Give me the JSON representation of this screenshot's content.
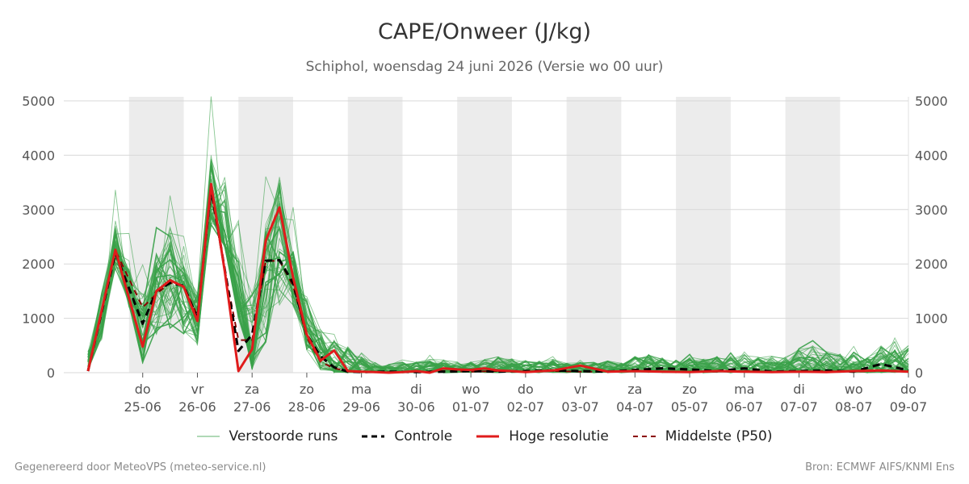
{
  "title": "CAPE/Onweer (J/kg)",
  "subtitle": "Schiphol, woensdag 24 juni 2026 (Versie wo 00 uur)",
  "footer_left": "Gegenereerd door MeteoVPS (meteo-service.nl)",
  "footer_right": "Bron: ECMWF AIFS/KNMI Ens",
  "colors": {
    "ens": "#3aa14a",
    "controle": "#000000",
    "hires": "#e01b1b",
    "p50": "#8b0000",
    "night": "#ececec",
    "grid": "#d8d8d8"
  },
  "legend": [
    {
      "key": "ens",
      "label": "Verstoorde runs"
    },
    {
      "key": "controle",
      "label": "Controle"
    },
    {
      "key": "hires",
      "label": "Hoge resolutie"
    },
    {
      "key": "p50",
      "label": "Middelste (P50)"
    }
  ],
  "chart_data": {
    "type": "line",
    "x_unit": "days since wo 24-06 00 uur",
    "xlim": [
      0,
      15
    ],
    "ylim": [
      0,
      5000
    ],
    "y_ticks": [
      0,
      1000,
      2000,
      3000,
      4000,
      5000
    ],
    "grid": true,
    "legend_position": "bottom",
    "x_ticks": [
      {
        "x": 1,
        "day": "do",
        "date": "25-06"
      },
      {
        "x": 2,
        "day": "vr",
        "date": "26-06"
      },
      {
        "x": 3,
        "day": "za",
        "date": "27-06"
      },
      {
        "x": 4,
        "day": "zo",
        "date": "28-06"
      },
      {
        "x": 5,
        "day": "ma",
        "date": "29-06"
      },
      {
        "x": 6,
        "day": "di",
        "date": "30-06"
      },
      {
        "x": 7,
        "day": "wo",
        "date": "01-07"
      },
      {
        "x": 8,
        "day": "do",
        "date": "02-07"
      },
      {
        "x": 9,
        "day": "vr",
        "date": "03-07"
      },
      {
        "x": 10,
        "day": "za",
        "date": "04-07"
      },
      {
        "x": 11,
        "day": "zo",
        "date": "05-07"
      },
      {
        "x": 12,
        "day": "ma",
        "date": "06-07"
      },
      {
        "x": 13,
        "day": "di",
        "date": "07-07"
      },
      {
        "x": 14,
        "day": "wo",
        "date": "08-07"
      },
      {
        "x": 15,
        "day": "do",
        "date": "09-07"
      }
    ],
    "night_bands": [
      [
        0.75,
        1.75
      ],
      [
        2.75,
        3.75
      ],
      [
        4.75,
        5.75
      ],
      [
        6.75,
        7.75
      ],
      [
        8.75,
        9.75
      ],
      [
        10.75,
        11.75
      ],
      [
        12.75,
        13.75
      ]
    ],
    "series": [
      {
        "name": "Hoge resolutie",
        "kind": "hires",
        "x": [
          0,
          0.5,
          1,
          1.25,
          1.5,
          1.75,
          2,
          2.25,
          2.5,
          2.75,
          3,
          3.25,
          3.5,
          3.75,
          4,
          4.25,
          4.5,
          4.75,
          5,
          5.25,
          5.5,
          5.75,
          6,
          6.25,
          6.5,
          6.75,
          7,
          7.25,
          7.5,
          7.75,
          8,
          8.5,
          9,
          9.5,
          10,
          10.5,
          11,
          11.5,
          12,
          12.5,
          13,
          13.5,
          14,
          14.5,
          15
        ],
        "y": [
          30,
          2260,
          480,
          1500,
          1700,
          1580,
          950,
          3470,
          1870,
          30,
          430,
          2430,
          3040,
          1750,
          700,
          220,
          410,
          30,
          20,
          10,
          0,
          10,
          30,
          0,
          80,
          60,
          50,
          80,
          40,
          30,
          10,
          40,
          130,
          20,
          30,
          20,
          10,
          30,
          20,
          10,
          20,
          10,
          30,
          40,
          20
        ]
      },
      {
        "name": "Controle",
        "kind": "controle",
        "x": [
          0,
          0.5,
          1,
          1.25,
          1.5,
          1.75,
          2,
          2.25,
          2.5,
          2.75,
          3,
          3.25,
          3.5,
          3.75,
          4,
          4.25,
          4.5,
          4.75,
          5,
          5.5,
          6,
          6.5,
          7,
          7.5,
          8,
          8.5,
          9,
          9.5,
          10,
          10.5,
          11,
          11.5,
          12,
          12.5,
          13,
          13.5,
          14,
          14.5,
          15
        ],
        "y": [
          30,
          2200,
          900,
          1500,
          1650,
          1600,
          1000,
          3400,
          1900,
          400,
          700,
          2060,
          2070,
          1650,
          700,
          300,
          100,
          20,
          10,
          20,
          10,
          20,
          30,
          20,
          30,
          40,
          30,
          20,
          50,
          80,
          60,
          30,
          80,
          20,
          30,
          40,
          20,
          160,
          40
        ]
      },
      {
        "name": "Middelste (P50)",
        "kind": "p50",
        "x": [
          0,
          0.5,
          1,
          1.25,
          1.5,
          1.75,
          2,
          2.25,
          2.5,
          2.75,
          3,
          3.25,
          3.5,
          3.75,
          4,
          4.25,
          4.5,
          4.75,
          5,
          5.5,
          6,
          6.5,
          7,
          7.5,
          8,
          8.5,
          9,
          9.5,
          10,
          10.5,
          11,
          11.5,
          12,
          12.5,
          13,
          13.5,
          14,
          14.5,
          15
        ],
        "y": [
          30,
          2250,
          1200,
          1450,
          1650,
          1600,
          1050,
          3300,
          1900,
          600,
          600,
          2050,
          2060,
          1600,
          650,
          200,
          80,
          30,
          20,
          10,
          20,
          30,
          20,
          30,
          20,
          30,
          20,
          20,
          30,
          20,
          20,
          20,
          30,
          20,
          20,
          30,
          20,
          30,
          20
        ]
      }
    ],
    "ensemble": {
      "name": "Verstoorde runs",
      "member_count": 50,
      "x": [
        0,
        0.25,
        0.5,
        0.75,
        1,
        1.25,
        1.5,
        1.75,
        2,
        2.25,
        2.5,
        2.75,
        3,
        3.25,
        3.5,
        3.75,
        4,
        4.25,
        4.5,
        4.75,
        5,
        5.25,
        5.5,
        5.75,
        6,
        6.25,
        6.5,
        6.75,
        7,
        7.25,
        7.5,
        7.75,
        8,
        8.25,
        8.5,
        8.75,
        9,
        9.25,
        9.5,
        9.75,
        10,
        10.25,
        10.5,
        10.75,
        11,
        11.25,
        11.5,
        11.75,
        12,
        12.25,
        12.5,
        12.75,
        13,
        13.25,
        13.5,
        13.75,
        14,
        14.25,
        14.5,
        14.75,
        15
      ],
      "p10": [
        50,
        600,
        1900,
        1200,
        150,
        700,
        800,
        700,
        500,
        2700,
        2300,
        1000,
        50,
        500,
        1200,
        1200,
        400,
        50,
        0,
        0,
        0,
        0,
        0,
        0,
        0,
        0,
        0,
        0,
        0,
        0,
        0,
        0,
        0,
        0,
        0,
        0,
        0,
        0,
        0,
        0,
        0,
        0,
        0,
        0,
        0,
        0,
        0,
        0,
        0,
        0,
        0,
        0,
        0,
        0,
        0,
        0,
        0,
        0,
        0,
        0,
        0
      ],
      "p50": [
        100,
        1000,
        2200,
        1500,
        800,
        1500,
        1650,
        1500,
        1050,
        3300,
        2400,
        1400,
        300,
        1800,
        2200,
        1800,
        800,
        300,
        100,
        50,
        20,
        10,
        20,
        30,
        20,
        40,
        60,
        40,
        50,
        40,
        60,
        40,
        50,
        40,
        50,
        30,
        40,
        30,
        50,
        40,
        60,
        70,
        50,
        40,
        60,
        50,
        60,
        40,
        60,
        50,
        60,
        40,
        70,
        80,
        60,
        50,
        70,
        60,
        80,
        70,
        60
      ],
      "p90": [
        400,
        1500,
        2700,
        1900,
        1500,
        2200,
        2700,
        2000,
        1500,
        4000,
        3500,
        2200,
        1500,
        2700,
        3600,
        2300,
        1400,
        800,
        600,
        500,
        300,
        200,
        150,
        200,
        200,
        250,
        250,
        200,
        200,
        250,
        300,
        250,
        250,
        220,
        250,
        180,
        200,
        200,
        220,
        180,
        300,
        350,
        280,
        250,
        300,
        250,
        300,
        280,
        350,
        300,
        320,
        300,
        450,
        500,
        400,
        350,
        400,
        300,
        500,
        600,
        500
      ]
    }
  }
}
